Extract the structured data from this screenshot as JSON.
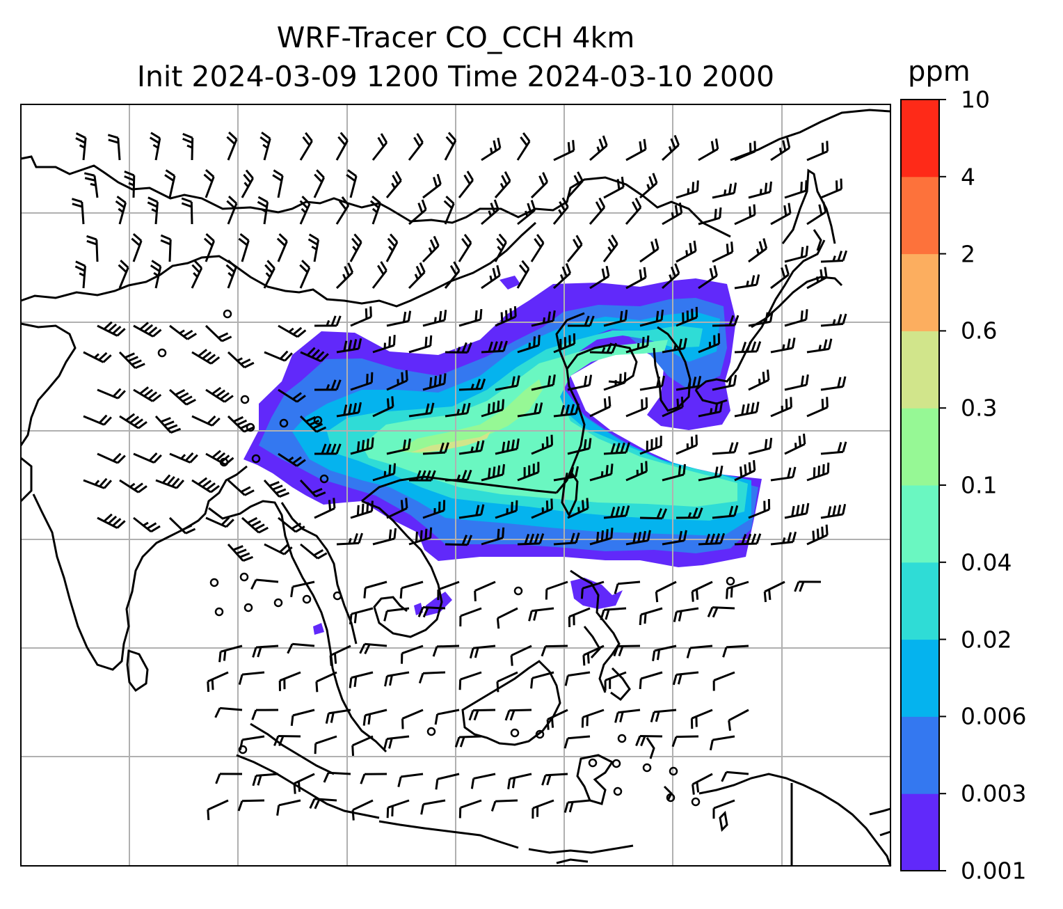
{
  "title": {
    "line1": "WRF-Tracer CO_CCH 4km",
    "line2": "Init 2024-03-09 1200 Time 2024-03-10 2000"
  },
  "colorbar": {
    "unit": "ppm",
    "levels": [
      "0.001",
      "0.003",
      "0.006",
      "0.02",
      "0.04",
      "0.1",
      "0.3",
      "0.6",
      "2",
      "4",
      "10"
    ],
    "colors": [
      "#6129fa",
      "#3478f0",
      "#05b3ee",
      "#2fdcd6",
      "#6af7c1",
      "#96f895",
      "#d1e58b",
      "#fcae5f",
      "#fd723b",
      "#fe2a18"
    ]
  },
  "map": {
    "gridlines": true,
    "colors": {
      "coast": "#000000",
      "grid": "#b0b0b0",
      "barb": "#000000"
    }
  }
}
